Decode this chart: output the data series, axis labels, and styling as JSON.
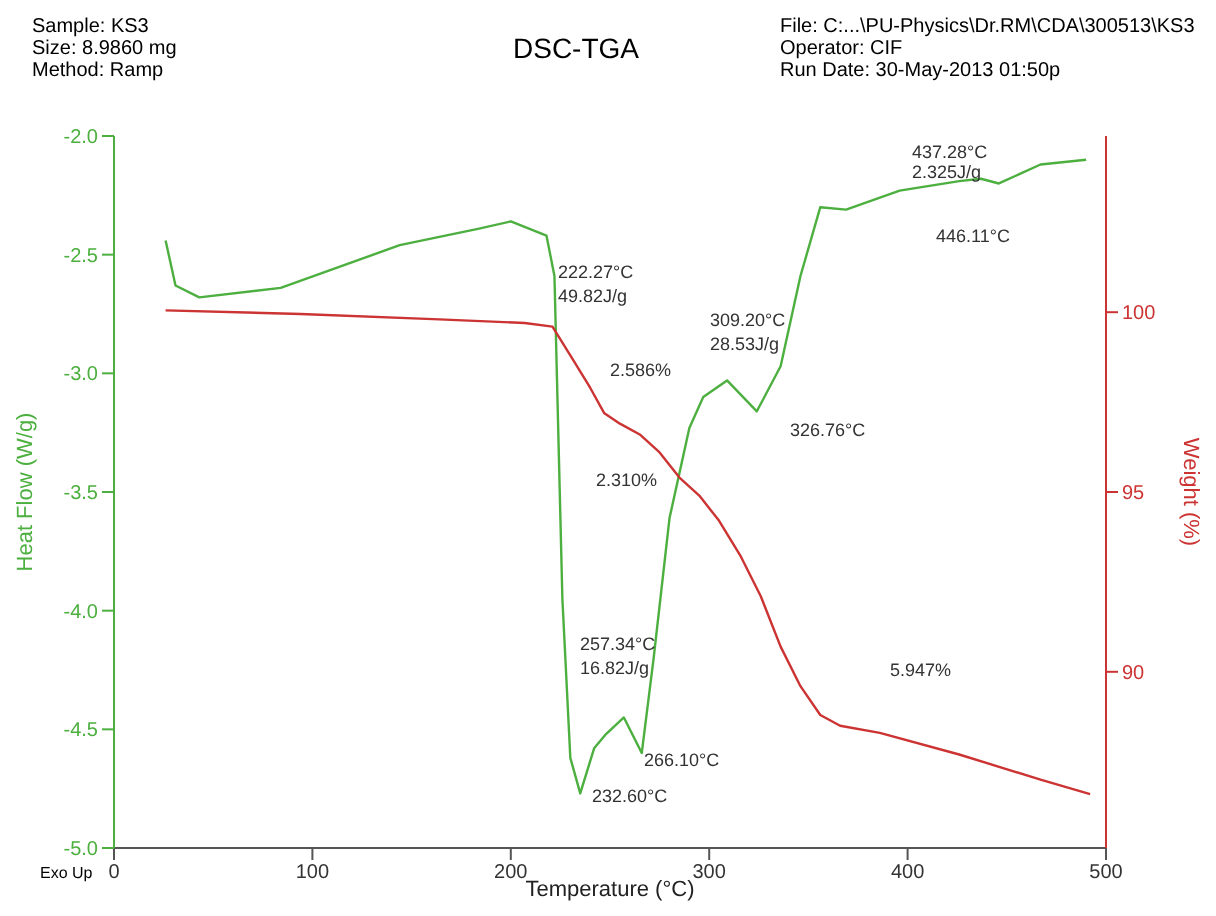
{
  "chart_data": {
    "type": "line",
    "title": "DSC-TGA",
    "xlabel": "Temperature (°C)",
    "ylabel": "Heat Flow (W/g)",
    "y2label": "Weight (%)",
    "xlim": [
      0,
      500
    ],
    "xticks": [
      0,
      100,
      200,
      300,
      400,
      500
    ],
    "ylim": [
      -5,
      -2
    ],
    "yticks": [
      {
        "value": -5,
        "label": "-5.0"
      },
      {
        "value": -4.5,
        "label": "-4.5"
      },
      {
        "value": -4,
        "label": "-4.0"
      },
      {
        "value": -3.5,
        "label": "-3.5"
      },
      {
        "value": -3,
        "label": "-3.0"
      },
      {
        "value": -2.5,
        "label": "-2.5"
      },
      {
        "value": -2,
        "label": "-2.0"
      }
    ],
    "y2lim": [
      85.1,
      104.9
    ],
    "y2ticks": [
      90,
      95,
      100
    ],
    "marker": "none",
    "line_style": "solid",
    "series": [
      {
        "color": "#4caf3f",
        "x": [
          26,
          31,
          43,
          84,
          144,
          184,
          200,
          218,
          222,
          226,
          230,
          235,
          242,
          248,
          257,
          266,
          272,
          280,
          290,
          297,
          309,
          324,
          336,
          346,
          356,
          369,
          396,
          426,
          437,
          446,
          467,
          490
        ],
        "values": [
          -2.44,
          -2.63,
          -2.68,
          -2.64,
          -2.46,
          -2.39,
          -2.36,
          -2.42,
          -2.59,
          -3.95,
          -4.62,
          -4.77,
          -4.58,
          -4.52,
          -4.45,
          -4.6,
          -4.2,
          -3.61,
          -3.23,
          -3.1,
          -3.03,
          -3.16,
          -2.97,
          -2.59,
          -2.3,
          -2.31,
          -2.23,
          -2.19,
          -2.18,
          -2.2,
          -2.12,
          -2.1
        ]
      },
      {
        "color": "#cc3333",
        "axis": "y2",
        "x": [
          26,
          94,
          164,
          207,
          221,
          230,
          240,
          247,
          255,
          265,
          275,
          285,
          295,
          305,
          316,
          326,
          336,
          346,
          356,
          366,
          386,
          426,
          467,
          492
        ],
        "values": [
          100.05,
          99.95,
          99.8,
          99.7,
          99.6,
          98.8,
          97.9,
          97.2,
          96.9,
          96.6,
          96.1,
          95.4,
          94.9,
          94.2,
          93.2,
          92.1,
          90.7,
          89.6,
          88.8,
          88.5,
          88.3,
          87.7,
          87.0,
          86.6
        ]
      }
    ],
    "annotations": [
      "Sample: KS3",
      "Size:  8.9860 mg",
      "Method: Ramp",
      "File: C:...\\PU-Physics\\Dr.RM\\CDA\\300513\\KS3",
      "Operator: CIF",
      "Run Date: 30-May-2013 01:50p",
      "Exo Up",
      "222.27°C",
      "49.82J/g",
      "2.586%",
      "2.310%",
      "309.20°C",
      "28.53J/g",
      "326.76°C",
      "257.34°C",
      "16.82J/g",
      "266.10°C",
      "232.60°C",
      "5.947%",
      "437.28°C",
      "2.325J/g",
      "446.11°C"
    ]
  }
}
